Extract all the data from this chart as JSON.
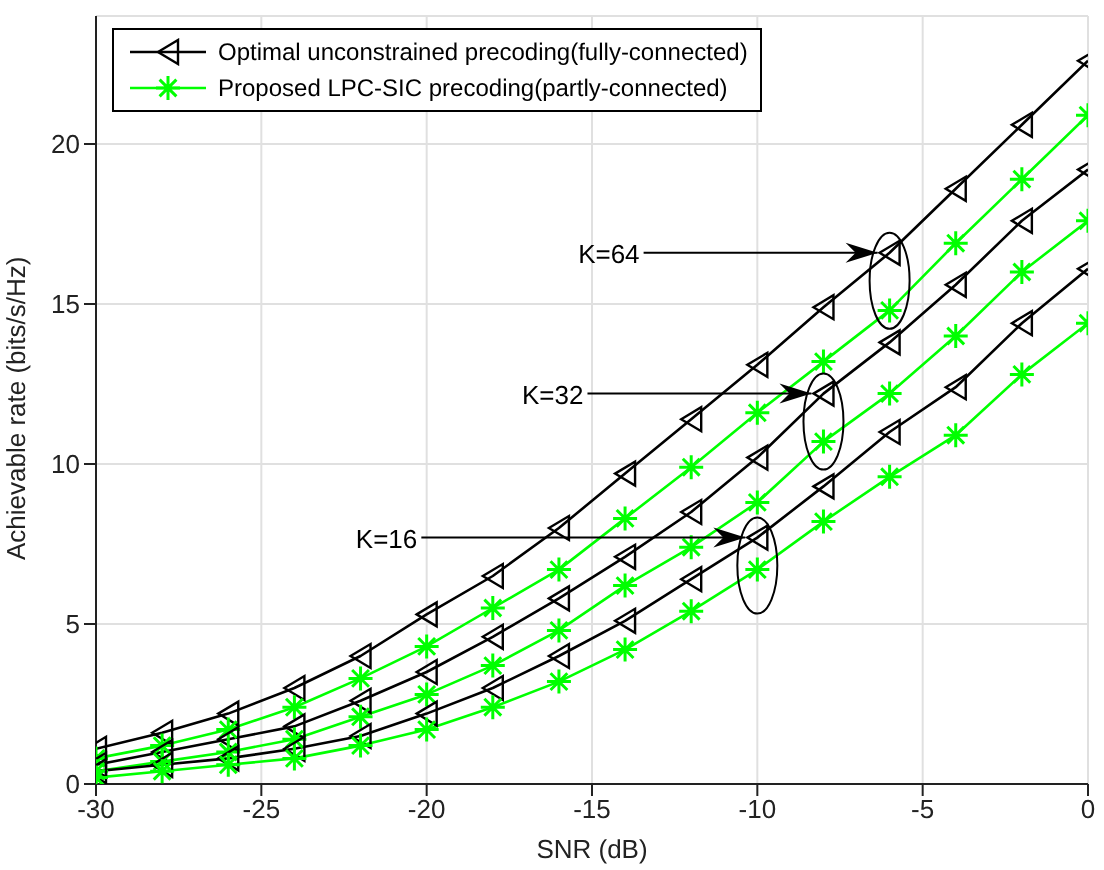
{
  "chart_data": {
    "type": "line",
    "xlabel": "SNR (dB)",
    "ylabel": "Achievable rate (bits/s/Hz)",
    "x": [
      -30,
      -28,
      -26,
      -24,
      -22,
      -20,
      -18,
      -16,
      -14,
      -12,
      -10,
      -8,
      -6,
      -4,
      -2,
      0
    ],
    "series": [
      {
        "name": "Optimal unconstrained precoding(fully-connected)",
        "color": "#000000",
        "marker": "triangle",
        "values": [
          1.1,
          1.6,
          2.2,
          3.0,
          4.0,
          5.3,
          6.5,
          8.0,
          9.7,
          11.4,
          13.1,
          14.9,
          16.6,
          18.6,
          20.6,
          22.6
        ]
      },
      {
        "name": "Proposed LPC-SIC precoding(partly-connected)",
        "color": "#00ff00",
        "marker": "cross",
        "values": [
          0.8,
          1.2,
          1.7,
          2.4,
          3.3,
          4.3,
          5.5,
          6.7,
          8.3,
          9.9,
          11.6,
          13.2,
          14.8,
          16.9,
          18.9,
          20.9
        ]
      },
      {
        "color": "#000000",
        "marker": "triangle",
        "values": [
          0.6,
          1.0,
          1.4,
          1.8,
          2.6,
          3.5,
          4.6,
          5.8,
          7.1,
          8.5,
          10.2,
          12.2,
          13.8,
          15.6,
          17.6,
          19.2
        ]
      },
      {
        "color": "#00ff00",
        "marker": "cross",
        "values": [
          0.4,
          0.7,
          1.0,
          1.4,
          2.1,
          2.8,
          3.7,
          4.8,
          6.2,
          7.4,
          8.8,
          10.7,
          12.2,
          14.0,
          16.0,
          17.6
        ]
      },
      {
        "color": "#000000",
        "marker": "triangle",
        "values": [
          0.4,
          0.6,
          0.8,
          1.1,
          1.5,
          2.2,
          3.0,
          4.0,
          5.1,
          6.4,
          7.7,
          9.3,
          11.0,
          12.4,
          14.4,
          16.1
        ]
      },
      {
        "color": "#00ff00",
        "marker": "cross",
        "values": [
          0.2,
          0.4,
          0.6,
          0.8,
          1.2,
          1.7,
          2.4,
          3.2,
          4.2,
          5.4,
          6.7,
          8.2,
          9.6,
          10.9,
          12.8,
          14.4
        ]
      }
    ],
    "xlim": [
      -30,
      0
    ],
    "xticks": [
      -30,
      -25,
      -20,
      -15,
      -10,
      -5,
      0
    ],
    "ylim": [
      0,
      24
    ],
    "yticks": [
      0,
      5,
      10,
      15,
      20
    ],
    "grid": true,
    "legend": "top left",
    "line_style": "solid",
    "annotations": [
      {
        "text": "K=64",
        "x": -6,
        "y": 16.6
      },
      {
        "text": "K=32",
        "x": -8,
        "y": 12.2
      },
      {
        "text": "K=16",
        "x": -10,
        "y": 7.7
      }
    ]
  }
}
